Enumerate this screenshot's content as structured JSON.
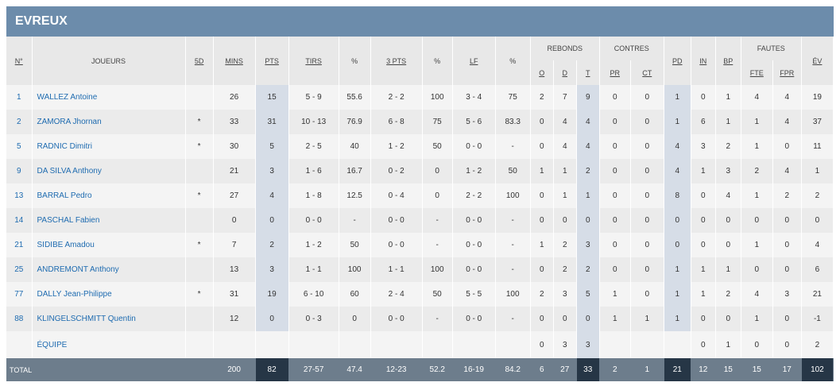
{
  "team": {
    "name": "EVREUX"
  },
  "headers": {
    "num": "N°",
    "players": "JOUEURS",
    "starter": "5D",
    "mins": "MINS",
    "pts": "PTS",
    "tirs": "TIRS",
    "pct1": "%",
    "three": "3 PTS",
    "pct2": "%",
    "lf": "LF",
    "pct3": "%",
    "rebonds": "REBONDS",
    "reb_o": "O",
    "reb_d": "D",
    "reb_t": "T",
    "contres": "CONTRES",
    "pr": "PR",
    "ct": "CT",
    "pd": "PD",
    "in": "IN",
    "bp": "BP",
    "fautes": "FAUTES",
    "fte": "FTE",
    "fpr": "FPR",
    "ev": "ÉV"
  },
  "players": [
    {
      "num": "1",
      "name": "WALLEZ Antoine",
      "starter": "",
      "mins": "26",
      "pts": "15",
      "tirs": "5 - 9",
      "pct_tirs": "55.6",
      "three": "2 - 2",
      "pct_three": "100",
      "lf": "3 - 4",
      "pct_lf": "75",
      "o": "2",
      "d": "7",
      "t": "9",
      "pr": "0",
      "ct": "0",
      "pd": "1",
      "in": "0",
      "bp": "1",
      "fte": "4",
      "fpr": "4",
      "ev": "19"
    },
    {
      "num": "2",
      "name": "ZAMORA Jhornan",
      "starter": "*",
      "mins": "33",
      "pts": "31",
      "tirs": "10 - 13",
      "pct_tirs": "76.9",
      "three": "6 - 8",
      "pct_three": "75",
      "lf": "5 - 6",
      "pct_lf": "83.3",
      "o": "0",
      "d": "4",
      "t": "4",
      "pr": "0",
      "ct": "0",
      "pd": "1",
      "in": "6",
      "bp": "1",
      "fte": "1",
      "fpr": "4",
      "ev": "37"
    },
    {
      "num": "5",
      "name": "RADNIC Dimitri",
      "starter": "*",
      "mins": "30",
      "pts": "5",
      "tirs": "2 - 5",
      "pct_tirs": "40",
      "three": "1 - 2",
      "pct_three": "50",
      "lf": "0 - 0",
      "pct_lf": "-",
      "o": "0",
      "d": "4",
      "t": "4",
      "pr": "0",
      "ct": "0",
      "pd": "4",
      "in": "3",
      "bp": "2",
      "fte": "1",
      "fpr": "0",
      "ev": "11"
    },
    {
      "num": "9",
      "name": "DA SILVA Anthony",
      "starter": "",
      "mins": "21",
      "pts": "3",
      "tirs": "1 - 6",
      "pct_tirs": "16.7",
      "three": "0 - 2",
      "pct_three": "0",
      "lf": "1 - 2",
      "pct_lf": "50",
      "o": "1",
      "d": "1",
      "t": "2",
      "pr": "0",
      "ct": "0",
      "pd": "4",
      "in": "1",
      "bp": "3",
      "fte": "2",
      "fpr": "4",
      "ev": "1"
    },
    {
      "num": "13",
      "name": "BARRAL Pedro",
      "starter": "*",
      "mins": "27",
      "pts": "4",
      "tirs": "1 - 8",
      "pct_tirs": "12.5",
      "three": "0 - 4",
      "pct_three": "0",
      "lf": "2 - 2",
      "pct_lf": "100",
      "o": "0",
      "d": "1",
      "t": "1",
      "pr": "0",
      "ct": "0",
      "pd": "8",
      "in": "0",
      "bp": "4",
      "fte": "1",
      "fpr": "2",
      "ev": "2"
    },
    {
      "num": "14",
      "name": "PASCHAL Fabien",
      "starter": "",
      "mins": "0",
      "pts": "0",
      "tirs": "0 - 0",
      "pct_tirs": "-",
      "three": "0 - 0",
      "pct_three": "-",
      "lf": "0 - 0",
      "pct_lf": "-",
      "o": "0",
      "d": "0",
      "t": "0",
      "pr": "0",
      "ct": "0",
      "pd": "0",
      "in": "0",
      "bp": "0",
      "fte": "0",
      "fpr": "0",
      "ev": "0"
    },
    {
      "num": "21",
      "name": "SIDIBE Amadou",
      "starter": "*",
      "mins": "7",
      "pts": "2",
      "tirs": "1 - 2",
      "pct_tirs": "50",
      "three": "0 - 0",
      "pct_three": "-",
      "lf": "0 - 0",
      "pct_lf": "-",
      "o": "1",
      "d": "2",
      "t": "3",
      "pr": "0",
      "ct": "0",
      "pd": "0",
      "in": "0",
      "bp": "0",
      "fte": "1",
      "fpr": "0",
      "ev": "4"
    },
    {
      "num": "25",
      "name": "ANDREMONT Anthony",
      "starter": "",
      "mins": "13",
      "pts": "3",
      "tirs": "1 - 1",
      "pct_tirs": "100",
      "three": "1 - 1",
      "pct_three": "100",
      "lf": "0 - 0",
      "pct_lf": "-",
      "o": "0",
      "d": "2",
      "t": "2",
      "pr": "0",
      "ct": "0",
      "pd": "1",
      "in": "1",
      "bp": "1",
      "fte": "0",
      "fpr": "0",
      "ev": "6"
    },
    {
      "num": "77",
      "name": "DALLY Jean-Philippe",
      "starter": "*",
      "mins": "31",
      "pts": "19",
      "tirs": "6 - 10",
      "pct_tirs": "60",
      "three": "2 - 4",
      "pct_three": "50",
      "lf": "5 - 5",
      "pct_lf": "100",
      "o": "2",
      "d": "3",
      "t": "5",
      "pr": "1",
      "ct": "0",
      "pd": "1",
      "in": "1",
      "bp": "2",
      "fte": "4",
      "fpr": "3",
      "ev": "21"
    },
    {
      "num": "88",
      "name": "KLINGELSCHMITT Quentin",
      "starter": "",
      "mins": "12",
      "pts": "0",
      "tirs": "0 - 3",
      "pct_tirs": "0",
      "three": "0 - 0",
      "pct_three": "-",
      "lf": "0 - 0",
      "pct_lf": "-",
      "o": "0",
      "d": "0",
      "t": "0",
      "pr": "1",
      "ct": "1",
      "pd": "1",
      "in": "0",
      "bp": "0",
      "fte": "1",
      "fpr": "0",
      "ev": "-1"
    }
  ],
  "equipe": {
    "name": "ÉQUIPE",
    "o": "0",
    "d": "3",
    "t": "3",
    "in": "0",
    "bp": "1",
    "fte": "0",
    "fpr": "0",
    "ev": "2"
  },
  "totals": {
    "label": "TOTAL",
    "mins": "200",
    "pts": "82",
    "tirs": "27-57",
    "pct_tirs": "47.4",
    "three": "12-23",
    "pct_three": "52.2",
    "lf": "16-19",
    "pct_lf": "84.2",
    "o": "6",
    "d": "27",
    "t": "33",
    "pr": "2",
    "ct": "1",
    "pd": "21",
    "in": "12",
    "bp": "15",
    "fte": "15",
    "fpr": "17",
    "ev": "102"
  }
}
